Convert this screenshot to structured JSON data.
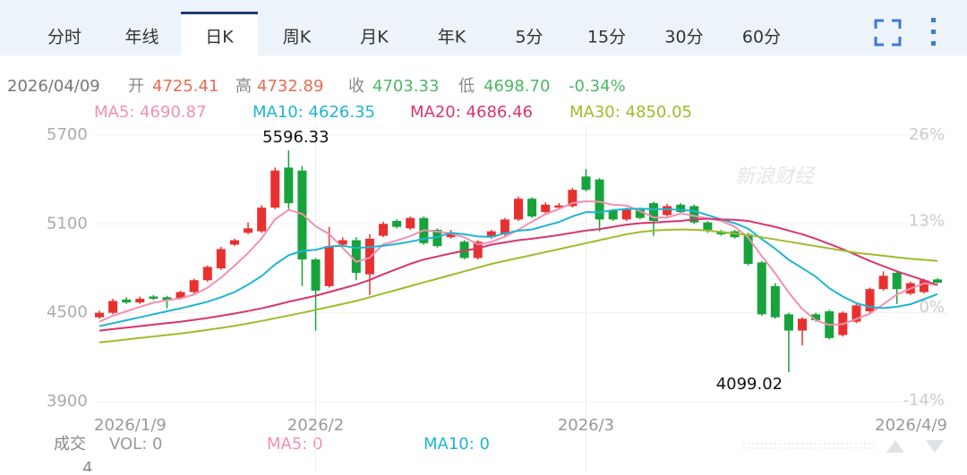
{
  "tabs": [
    "分时",
    "年线",
    "日K",
    "周K",
    "月K",
    "年K",
    "5分",
    "15分",
    "30分",
    "60分"
  ],
  "quote": {
    "date": "2026/04/09",
    "open_label": "开",
    "open": "4725.41",
    "high_label": "高",
    "high": "4732.89",
    "close_label": "收",
    "close": "4703.33",
    "low_label": "低",
    "low": "4698.70",
    "change": "-0.34%"
  },
  "watermark": "新浪财经",
  "chart_data": {
    "type": "candlestick",
    "categories": [
      "2026/1/9",
      null,
      null,
      null,
      null,
      null,
      null,
      null,
      null,
      null,
      null,
      null,
      null,
      null,
      null,
      null,
      "2026/2",
      null,
      null,
      null,
      null,
      null,
      null,
      null,
      null,
      null,
      null,
      null,
      null,
      null,
      null,
      null,
      null,
      null,
      null,
      null,
      "2026/3",
      null,
      null,
      null,
      null,
      null,
      null,
      null,
      null,
      null,
      null,
      null,
      null,
      null,
      null,
      null,
      null,
      null,
      null,
      null,
      null,
      null,
      null,
      null,
      null,
      null,
      "2026/4/9"
    ],
    "open": [
      4470,
      4500,
      4590,
      4570,
      4610,
      4605,
      4600,
      4640,
      4720,
      4800,
      4960,
      5040,
      5050,
      5210,
      5480,
      5460,
      4860,
      4680,
      4960,
      4990,
      4760,
      5020,
      5120,
      5070,
      5140,
      5060,
      5010,
      4980,
      4870,
      5010,
      5030,
      5130,
      5270,
      5180,
      5210,
      5220,
      5420,
      5400,
      5190,
      5130,
      5200,
      5240,
      5160,
      5230,
      5220,
      5110,
      5050,
      5050,
      5030,
      4840,
      4680,
      4490,
      4380,
      4490,
      4510,
      4350,
      4440,
      4510,
      4660,
      4770,
      4630,
      4640,
      4725.41
    ],
    "high": [
      4515,
      4595,
      4605,
      4610,
      4620,
      4615,
      4650,
      4730,
      4820,
      4945,
      5000,
      5110,
      5225,
      5480,
      5596.33,
      5490,
      4870,
      5080,
      5010,
      5010,
      5030,
      5115,
      5130,
      5150,
      5150,
      5070,
      5060,
      4990,
      4990,
      5060,
      5140,
      5285,
      5280,
      5245,
      5240,
      5345,
      5470,
      5410,
      5200,
      5210,
      5210,
      5250,
      5235,
      5240,
      5230,
      5120,
      5060,
      5060,
      5040,
      4850,
      4700,
      4500,
      4470,
      4500,
      4520,
      4510,
      4560,
      4670,
      4780,
      4780,
      4710,
      4730,
      4732.89
    ],
    "low": [
      4460,
      4490,
      4560,
      4560,
      4585,
      4530,
      4590,
      4630,
      4710,
      4790,
      4950,
      5030,
      5040,
      5200,
      5200,
      4680,
      4380,
      4670,
      4950,
      4720,
      4620,
      5010,
      5070,
      5060,
      4960,
      4940,
      5000,
      4860,
      4860,
      5000,
      5020,
      5120,
      5140,
      5170,
      5200,
      5210,
      5320,
      5050,
      5120,
      5120,
      5130,
      5020,
      5150,
      5170,
      5100,
      5040,
      5020,
      5000,
      4820,
      4480,
      4460,
      4099.02,
      4280,
      4440,
      4320,
      4340,
      4430,
      4500,
      4650,
      4560,
      4620,
      4630,
      4698.7
    ],
    "close": [
      4500,
      4580,
      4570,
      4595,
      4595,
      4585,
      4640,
      4720,
      4810,
      4930,
      4990,
      5070,
      5210,
      5460,
      5240,
      4860,
      4650,
      4950,
      4990,
      4770,
      5000,
      5100,
      5080,
      5140,
      4970,
      4950,
      5040,
      4870,
      4980,
      5050,
      5130,
      5270,
      5150,
      5230,
      5225,
      5330,
      5330,
      5130,
      5130,
      5200,
      5140,
      5120,
      5220,
      5180,
      5110,
      5060,
      5030,
      5010,
      4830,
      4490,
      4470,
      4380,
      4460,
      4450,
      4330,
      4500,
      4550,
      4660,
      4750,
      4660,
      4700,
      4719.37,
      4703.33
    ],
    "up_color": "#e8312f",
    "down_color": "#17a33b",
    "series": [
      {
        "name": "MA5: 4690.87",
        "color": "#f48fb1",
        "values": [
          4440,
          4480,
          4510,
          4540,
          4568,
          4585,
          4597,
          4623,
          4670,
          4737,
          4818,
          4904,
          5002,
          5132,
          5194,
          5168,
          5084,
          5032,
          4938,
          4844,
          4872,
          4962,
          4988,
          5018,
          5058,
          5048,
          5036,
          5010,
          4962,
          4978,
          5014,
          5060,
          5116,
          5166,
          5201,
          5241,
          5253,
          5249,
          5229,
          5224,
          5186,
          5144,
          5142,
          5172,
          5154,
          5138,
          5120,
          5082,
          5008,
          4884,
          4766,
          4636,
          4526,
          4450,
          4418,
          4424,
          4458,
          4494,
          4558,
          4624,
          4664,
          4698,
          4690.87
        ]
      },
      {
        "name": "MA10: 4626.35",
        "color": "#1fb4d2",
        "values": [
          4410,
          4430,
          4450,
          4470,
          4490,
          4510,
          4530,
          4552,
          4575,
          4605,
          4640,
          4690,
          4748,
          4827,
          4889,
          4918,
          4925,
          4948,
          4953,
          4937,
          4943,
          4952,
          4965,
          4980,
          5000,
          5010,
          5040,
          5030,
          5015,
          5013,
          5036,
          5054,
          5062,
          5088,
          5113,
          5151,
          5180,
          5178,
          5193,
          5201,
          5202,
          5200,
          5199,
          5195,
          5187,
          5160,
          5130,
          5105,
          5068,
          4998,
          4932,
          4858,
          4802,
          4744,
          4666,
          4610,
          4565,
          4540,
          4532,
          4541,
          4558,
          4592,
          4626.35
        ]
      },
      {
        "name": "MA20: 4686.46",
        "color": "#d9346e",
        "values": [
          4380,
          4390,
          4400,
          4410,
          4420,
          4430,
          4440,
          4452,
          4465,
          4480,
          4495,
          4512,
          4530,
          4552,
          4575,
          4595,
          4615,
          4640,
          4665,
          4690,
          4722,
          4760,
          4795,
          4830,
          4860,
          4880,
          4900,
          4920,
          4935,
          4960,
          4975,
          4990,
          5000,
          5012,
          5025,
          5040,
          5055,
          5065,
          5080,
          5095,
          5105,
          5110,
          5115,
          5120,
          5130,
          5135,
          5130,
          5128,
          5120,
          5100,
          5080,
          5055,
          5030,
          5000,
          4965,
          4930,
          4890,
          4850,
          4815,
          4780,
          4750,
          4720,
          4686.46
        ]
      },
      {
        "name": "MA30: 4850.05",
        "color": "#9cbd2a",
        "values": [
          4300,
          4310,
          4320,
          4330,
          4340,
          4350,
          4360,
          4372,
          4385,
          4398,
          4412,
          4428,
          4445,
          4463,
          4482,
          4500,
          4520,
          4540,
          4560,
          4580,
          4605,
          4630,
          4655,
          4680,
          4705,
          4730,
          4755,
          4780,
          4805,
          4830,
          4850,
          4870,
          4890,
          4910,
          4930,
          4950,
          4970,
          4990,
          5010,
          5030,
          5045,
          5055,
          5060,
          5062,
          5060,
          5055,
          5045,
          5035,
          5025,
          5010,
          4995,
          4980,
          4965,
          4950,
          4935,
          4920,
          4905,
          4895,
          4885,
          4875,
          4865,
          4858,
          4850.05
        ]
      }
    ],
    "annotations": [
      "5596.33",
      "4099.02"
    ],
    "ylim": [
      3834,
      5766
    ],
    "yticks": [
      3900,
      4500,
      5100,
      5700
    ],
    "y2lim": [
      -15.6,
      27.5
    ],
    "y2ticks": [
      {
        "value": 26,
        "label": "26%"
      },
      {
        "value": 13,
        "label": "13%"
      },
      {
        "value": 0,
        "label": "0%"
      },
      {
        "value": -14,
        "label": "-14%"
      }
    ],
    "grid": true
  },
  "volume": {
    "label": "成交",
    "vol": "VOL: 0",
    "ma5": "MA5: 0",
    "ma10": "MA10: 0",
    "axis_top": "4"
  }
}
